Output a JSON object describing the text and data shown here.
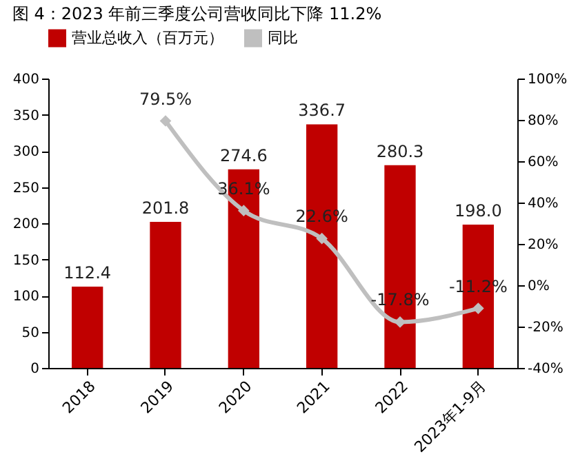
{
  "chart_data": {
    "type": "bar",
    "title": "图 4：2023 年前三季度公司营收同比下降 11.2%",
    "categories": [
      "2018",
      "2019",
      "2020",
      "2021",
      "2022",
      "2023年1-9月"
    ],
    "series": [
      {
        "name": "营业总收入（百万元）",
        "color": "#c00000",
        "values": [
          112.4,
          201.8,
          274.6,
          336.7,
          280.3,
          198.0
        ],
        "value_labels": [
          "112.4",
          "201.8",
          "274.6",
          "336.7",
          "280.3",
          "198.0"
        ]
      },
      {
        "name": "同比",
        "type": "line",
        "axis": "y2",
        "color": "#bfbfbf",
        "marker": "diamond",
        "values": [
          null,
          79.5,
          36.1,
          22.6,
          -17.8,
          -11.2
        ],
        "value_labels": [
          null,
          "79.5%",
          "36.1%",
          "22.6%",
          "-17.8%",
          "-11.2%"
        ]
      }
    ],
    "data_labels": true,
    "ylim": [
      0,
      400
    ],
    "yticks": [
      0,
      50,
      100,
      150,
      200,
      250,
      300,
      350,
      400
    ],
    "y2lim": [
      -40,
      100
    ],
    "y2ticks": [
      {
        "value": -40,
        "label": "-40%"
      },
      {
        "value": -20,
        "label": "-20%"
      },
      {
        "value": 0,
        "label": "0%"
      },
      {
        "value": 20,
        "label": "20%"
      },
      {
        "value": 40,
        "label": "40%"
      },
      {
        "value": 60,
        "label": "60%"
      },
      {
        "value": 80,
        "label": "80%"
      },
      {
        "value": 100,
        "label": "100%"
      }
    ],
    "grid": false,
    "legend": "top"
  }
}
